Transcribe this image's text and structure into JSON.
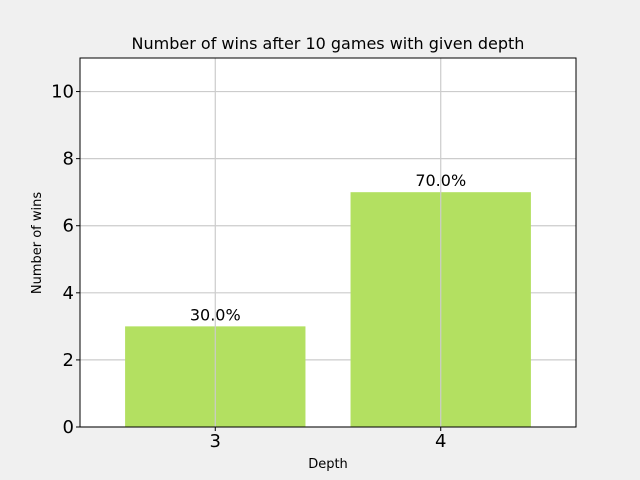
{
  "chart_data": {
    "type": "bar",
    "title": "Number of wins after 10 games with given depth",
    "xlabel": "Depth",
    "ylabel": "Number of wins",
    "categories": [
      "3",
      "4"
    ],
    "values": [
      3,
      7
    ],
    "data_labels": [
      "30.0%",
      "70.0%"
    ],
    "ylim": [
      0,
      11
    ],
    "yticks": [
      0,
      2,
      4,
      6,
      8,
      10
    ],
    "grid": true,
    "bar_color": "#b3e061",
    "background_color": "#f0f0f0",
    "plot_background": "#ffffff"
  }
}
